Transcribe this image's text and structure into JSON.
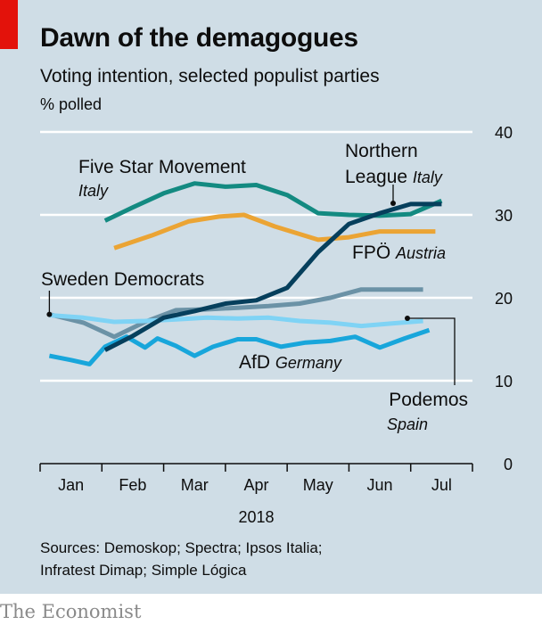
{
  "header": {
    "title": "Dawn of the demagogues",
    "subtitle": "Voting intention, selected populist parties",
    "unit": "% polled"
  },
  "footer": {
    "sources_line1": "Sources: Demoskop; Spectra; Ipsos Italia;",
    "sources_line2": "Infratest Dimap; Simple Lógica",
    "brand": "The Economist"
  },
  "colors": {
    "background": "#cfdde6",
    "red_tag": "#e3120b",
    "five_star": "#138a81",
    "northern_league": "#063f5c",
    "fpo": "#eba434",
    "sweden_democrats": "#6b92a6",
    "podemos": "#7fd3f5",
    "afd": "#18a6db"
  },
  "chart_data": {
    "type": "line",
    "title": "Dawn of the demagogues",
    "subtitle": "Voting intention, selected populist parties",
    "ylabel": "% polled",
    "xlabel": "2018",
    "ylim": [
      0,
      40
    ],
    "yticks": [
      0,
      10,
      20,
      30,
      40
    ],
    "xlim": [
      0,
      7
    ],
    "x_tick_labels": [
      "Jan",
      "Feb",
      "Mar",
      "Apr",
      "May",
      "Jun",
      "Jul"
    ],
    "y_axis_side": "right",
    "grid": true,
    "series": [
      {
        "name": "Five Star Movement",
        "country": "Italy",
        "color": "#138a81",
        "x": [
          1.05,
          1.5,
          2.0,
          2.5,
          3.0,
          3.5,
          4.0,
          4.5,
          5.0,
          5.5,
          6.0,
          6.5
        ],
        "y": [
          29.3,
          30.9,
          32.6,
          33.8,
          33.4,
          33.6,
          32.4,
          30.2,
          30.0,
          29.9,
          30.1,
          31.7
        ]
      },
      {
        "name": "Northern League",
        "country": "Italy",
        "color": "#063f5c",
        "x": [
          1.05,
          1.5,
          2.0,
          2.5,
          3.0,
          3.5,
          4.0,
          4.5,
          5.0,
          5.5,
          6.0,
          6.5
        ],
        "y": [
          13.7,
          15.4,
          17.6,
          18.4,
          19.3,
          19.7,
          21.2,
          25.5,
          28.9,
          30.2,
          31.3,
          31.3
        ]
      },
      {
        "name": "FPÖ",
        "country": "Austria",
        "color": "#eba434",
        "x": [
          1.2,
          1.8,
          2.4,
          2.9,
          3.3,
          3.8,
          4.5,
          5.0,
          5.5,
          6.0,
          6.4
        ],
        "y": [
          26.0,
          27.5,
          29.2,
          29.8,
          30.0,
          28.6,
          27.0,
          27.3,
          28.0,
          28.0,
          28.0
        ]
      },
      {
        "name": "Sweden Democrats",
        "country": "",
        "color": "#6b92a6",
        "x": [
          0.15,
          0.7,
          1.2,
          1.7,
          2.2,
          2.7,
          3.2,
          3.7,
          4.2,
          4.7,
          5.2,
          5.7,
          6.2
        ],
        "y": [
          18.0,
          17.0,
          15.3,
          17.1,
          18.5,
          18.6,
          18.8,
          19.0,
          19.3,
          20.0,
          21.0,
          21.0,
          21.0
        ]
      },
      {
        "name": "Podemos",
        "country": "Spain",
        "color": "#7fd3f5",
        "x": [
          0.15,
          0.7,
          1.2,
          1.7,
          2.2,
          2.7,
          3.2,
          3.7,
          4.2,
          4.7,
          5.2,
          5.7,
          6.2
        ],
        "y": [
          17.9,
          17.6,
          17.1,
          17.2,
          17.4,
          17.6,
          17.5,
          17.6,
          17.2,
          17.0,
          16.6,
          16.9,
          17.2
        ]
      },
      {
        "name": "AfD",
        "country": "Germany",
        "color": "#18a6db",
        "x": [
          0.15,
          0.5,
          0.8,
          1.05,
          1.4,
          1.7,
          1.9,
          2.2,
          2.5,
          2.8,
          3.2,
          3.5,
          3.9,
          4.3,
          4.7,
          5.1,
          5.5,
          5.9,
          6.3
        ],
        "y": [
          13.0,
          12.5,
          12.0,
          14.1,
          15.3,
          14.0,
          15.1,
          14.2,
          13.0,
          14.1,
          15.0,
          15.0,
          14.1,
          14.6,
          14.8,
          15.3,
          14.0,
          15.1,
          16.1
        ]
      }
    ]
  }
}
